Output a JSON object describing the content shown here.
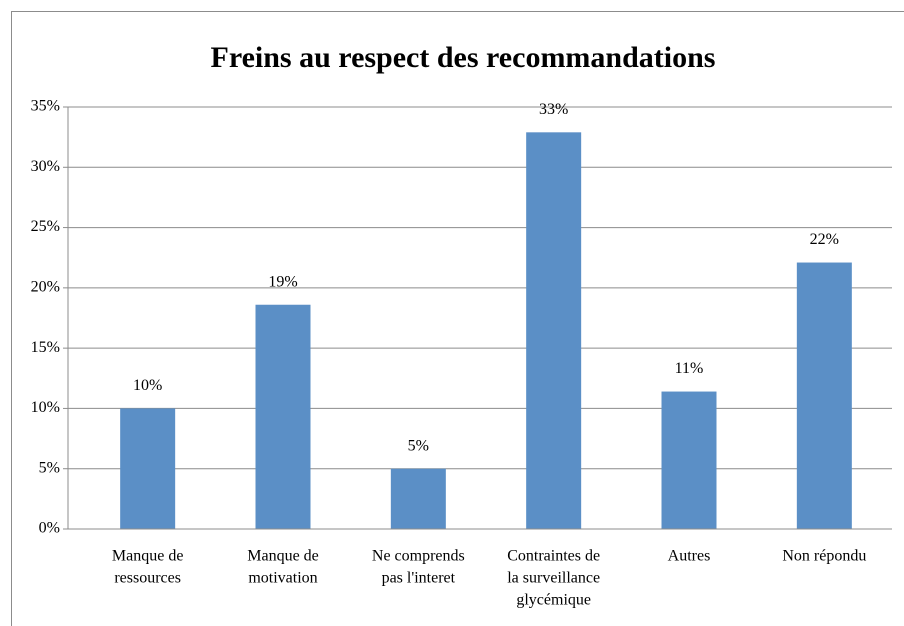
{
  "chart_data": {
    "type": "bar",
    "title": "Freins au respect des recommandations",
    "categories": [
      [
        "Manque de",
        "ressources"
      ],
      [
        "Manque de",
        "motivation"
      ],
      [
        "Ne comprends",
        "pas l'interet"
      ],
      [
        "Contraintes de",
        "la surveillance",
        "glycémique"
      ],
      [
        "Autres"
      ],
      [
        "Non répondu"
      ]
    ],
    "values": [
      10,
      18.6,
      5,
      32.9,
      11.4,
      22.1
    ],
    "value_labels": [
      "10%",
      "19%",
      "5%",
      "33%",
      "11%",
      "22%"
    ],
    "color": "#5b8fc6",
    "ylim": [
      0,
      35
    ],
    "yticks": [
      {
        "value": 0,
        "label": "0%"
      },
      {
        "value": 5,
        "label": "5%"
      },
      {
        "value": 10,
        "label": "10%"
      },
      {
        "value": 15,
        "label": "15%"
      },
      {
        "value": 20,
        "label": "20%"
      },
      {
        "value": 25,
        "label": "25%"
      },
      {
        "value": 30,
        "label": "30%"
      },
      {
        "value": 35,
        "label": "35%"
      }
    ],
    "grid": true
  }
}
